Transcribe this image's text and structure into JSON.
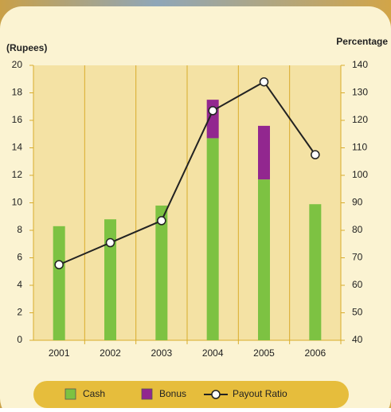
{
  "chart_data": {
    "type": "bar-line",
    "y_label": "(Rupees)",
    "y2_label": "Percentage",
    "categories": [
      "2001",
      "2002",
      "2003",
      "2004",
      "2005",
      "2006"
    ],
    "series": [
      {
        "name": "Cash",
        "color": "#7dc242",
        "type": "bar",
        "values": [
          8.3,
          8.8,
          9.8,
          14.7,
          11.7,
          9.9
        ]
      },
      {
        "name": "Bonus",
        "color": "#92278f",
        "type": "bar",
        "values": [
          0,
          0,
          0,
          2.8,
          3.9,
          0
        ]
      },
      {
        "name": "Payout Ratio",
        "color": "#222222",
        "type": "line",
        "axis": "y2",
        "values": [
          67.5,
          75.5,
          83.5,
          123.5,
          134,
          107.5
        ]
      }
    ],
    "ylim": [
      0,
      20
    ],
    "yticks": [
      0,
      2,
      4,
      6,
      8,
      10,
      12,
      14,
      16,
      18,
      20
    ],
    "y2lim": [
      40,
      140
    ],
    "y2ticks": [
      40,
      50,
      60,
      70,
      80,
      90,
      100,
      110,
      120,
      130,
      140
    ],
    "grid": true
  }
}
